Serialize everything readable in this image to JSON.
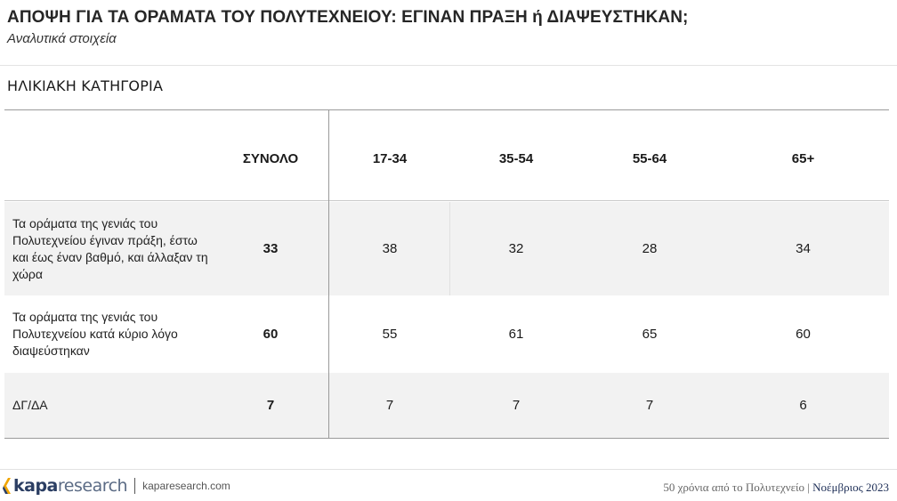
{
  "header": {
    "title": "ΑΠΟΨΗ ΓΙΑ ΤΑ ΟΡΑΜΑΤΑ ΤΟΥ ΠΟΛΥΤΕΧΝΕΙΟΥ: ΕΓΙΝΑΝ ΠΡΑΞΗ ή ΔΙΑΨΕΥΣΤΗΚΑΝ;",
    "subtitle": "Αναλυτικά στοιχεία"
  },
  "section_label": "ΗΛΙΚΙΑΚΗ ΚΑΤΗΓΟΡΙΑ",
  "table": {
    "columns": [
      "ΣΥΝΟΛΟ",
      "17-34",
      "35-54",
      "55-64",
      "65+"
    ],
    "rows": [
      {
        "label": "Τα οράματα της γενιάς του Πολυτεχνείου έγιναν πράξη, έστω και έως έναν βαθμό, και άλλαξαν τη χώρα",
        "values": [
          "33",
          "38",
          "32",
          "28",
          "34"
        ]
      },
      {
        "label": "Τα οράματα της γενιάς του Πολυτεχνείου κατά κύριο λόγο διαψεύστηκαν",
        "values": [
          "60",
          "55",
          "61",
          "65",
          "60"
        ]
      },
      {
        "label": "ΔΓ/ΔΑ",
        "values": [
          "7",
          "7",
          "7",
          "7",
          "6"
        ]
      }
    ]
  },
  "footer": {
    "logo_bold": "kapa",
    "logo_light": "research",
    "website": "kaparesearch.com",
    "context": "50 χρόνια από το Πολυτεχνείο",
    "divider": "|",
    "date": "Νοέμβριος 2023",
    "colors": {
      "brand_navy": "#2b3e63",
      "brand_orange": "#f0a500"
    }
  }
}
